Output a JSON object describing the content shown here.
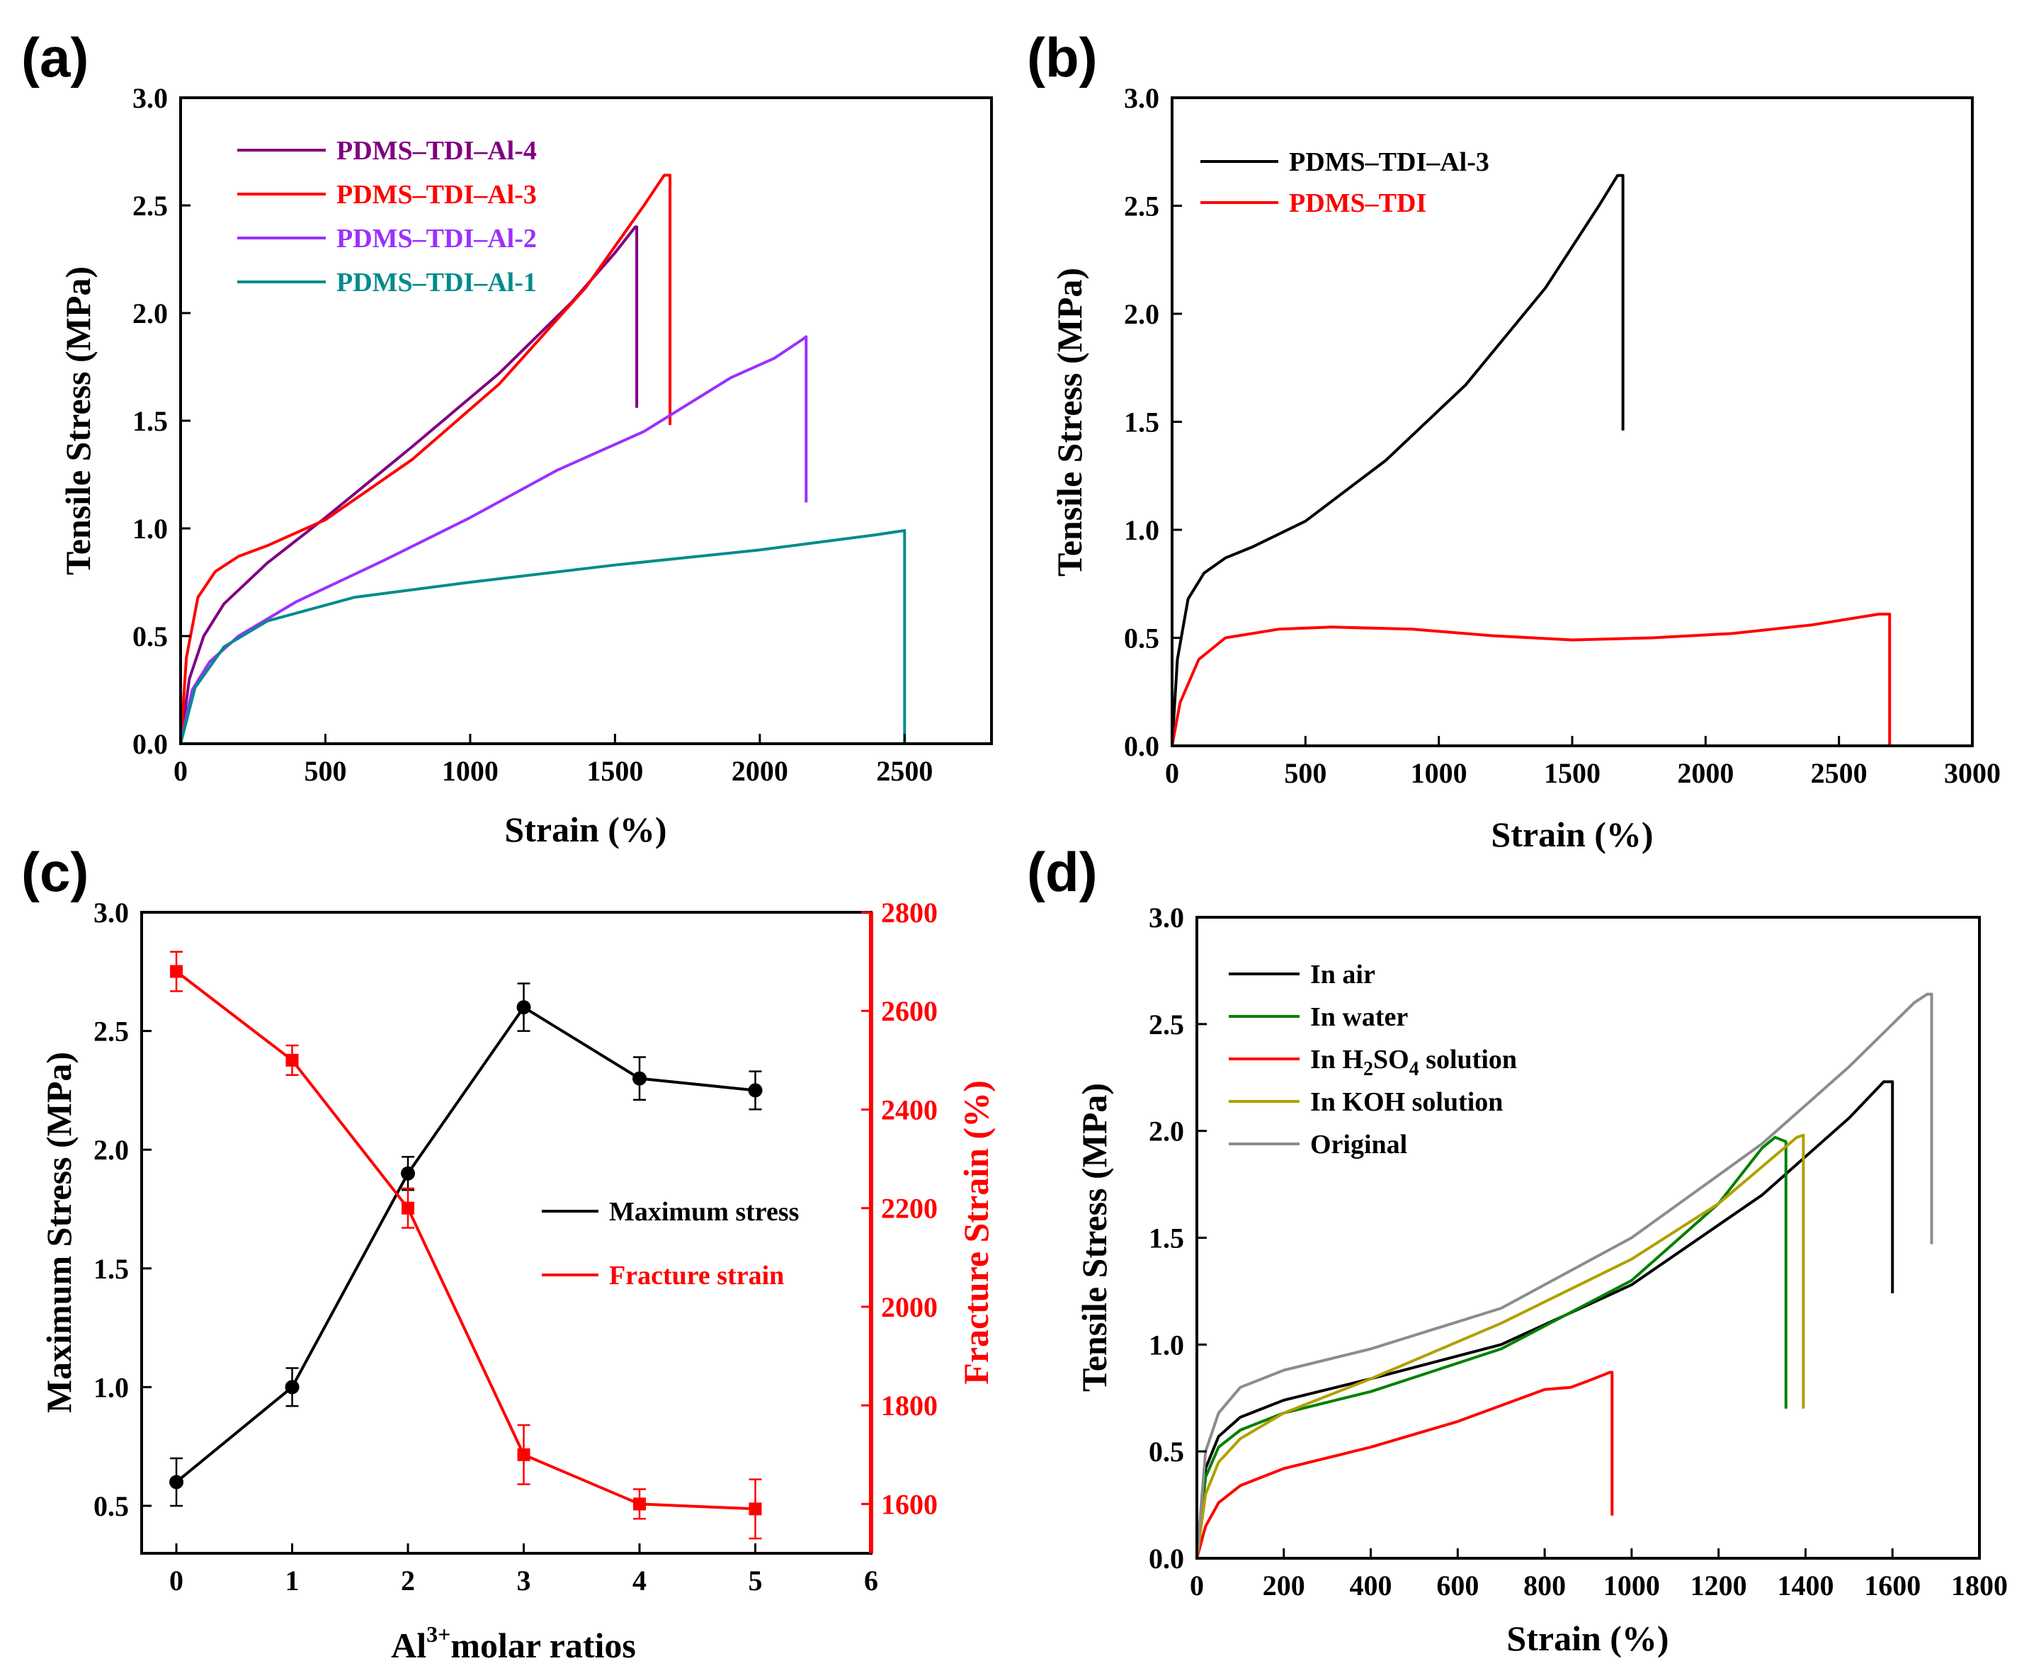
{
  "chart_data": [
    {
      "panel": "(a)",
      "type": "line",
      "xlabel": "Strain (%)",
      "ylabel": "Tensile Stress (MPa)",
      "xlim": [
        0,
        2800
      ],
      "ylim": [
        0,
        3.0
      ],
      "xticks": [
        0,
        500,
        1000,
        1500,
        2000,
        2500
      ],
      "xtick_labels": [
        "0",
        "500",
        "1000",
        "1500",
        "2000",
        "2500"
      ],
      "yticks": [
        0,
        0.5,
        1.0,
        1.5,
        2.0,
        2.5,
        3.0
      ],
      "ytick_labels": [
        "0.0",
        "0.5",
        "1.0",
        "1.5",
        "2.0",
        "2.5",
        "3.0"
      ],
      "legend_position": "top-left",
      "series": [
        {
          "name": "PDMS–TDI–Al-4",
          "color": "#800080",
          "x": [
            0,
            30,
            80,
            150,
            300,
            500,
            800,
            1100,
            1350,
            1500,
            1570,
            1575,
            1575
          ],
          "y": [
            0,
            0.3,
            0.5,
            0.65,
            0.84,
            1.05,
            1.38,
            1.72,
            2.05,
            2.28,
            2.4,
            2.4,
            1.56
          ]
        },
        {
          "name": "PDMS–TDI–Al-3",
          "color": "#ff0000",
          "x": [
            0,
            20,
            60,
            120,
            200,
            300,
            500,
            800,
            1100,
            1400,
            1600,
            1670,
            1690,
            1690
          ],
          "y": [
            0,
            0.4,
            0.68,
            0.8,
            0.87,
            0.92,
            1.04,
            1.32,
            1.67,
            2.12,
            2.5,
            2.64,
            2.64,
            1.48
          ]
        },
        {
          "name": "PDMS–TDI–Al-2",
          "color": "#9b30ff",
          "x": [
            0,
            40,
            100,
            200,
            400,
            700,
            1000,
            1300,
            1600,
            1900,
            2050,
            2150,
            2160,
            2160
          ],
          "y": [
            0,
            0.25,
            0.38,
            0.5,
            0.66,
            0.85,
            1.05,
            1.27,
            1.45,
            1.7,
            1.79,
            1.88,
            1.89,
            1.12
          ]
        },
        {
          "name": "PDMS–TDI–Al-1",
          "color": "#008b8b",
          "x": [
            0,
            50,
            150,
            300,
            600,
            1000,
            1500,
            2000,
            2400,
            2500,
            2500
          ],
          "y": [
            0,
            0.26,
            0.45,
            0.57,
            0.68,
            0.75,
            0.83,
            0.9,
            0.97,
            0.99,
            0
          ]
        }
      ]
    },
    {
      "panel": "(b)",
      "type": "line",
      "xlabel": "Strain (%)",
      "ylabel": "Tensile Stress (MPa)",
      "xlim": [
        0,
        3000
      ],
      "ylim": [
        0,
        3.0
      ],
      "xticks": [
        0,
        500,
        1000,
        1500,
        2000,
        2500,
        3000
      ],
      "xtick_labels": [
        "0",
        "500",
        "1000",
        "1500",
        "2000",
        "2500",
        "3000"
      ],
      "yticks": [
        0,
        0.5,
        1.0,
        1.5,
        2.0,
        2.5,
        3.0
      ],
      "ytick_labels": [
        "0.0",
        "0.5",
        "1.0",
        "1.5",
        "2.0",
        "2.5",
        "3.0"
      ],
      "legend_position": "top-left",
      "series": [
        {
          "name": "PDMS–TDI–Al-3",
          "color": "#000000",
          "x": [
            0,
            20,
            60,
            120,
            200,
            300,
            500,
            800,
            1100,
            1400,
            1600,
            1670,
            1690,
            1690
          ],
          "y": [
            0,
            0.4,
            0.68,
            0.8,
            0.87,
            0.92,
            1.04,
            1.32,
            1.67,
            2.12,
            2.5,
            2.64,
            2.64,
            1.46
          ]
        },
        {
          "name": "PDMS–TDI",
          "color": "#ff0000",
          "x": [
            0,
            30,
            100,
            200,
            400,
            600,
            900,
            1200,
            1500,
            1800,
            2100,
            2400,
            2650,
            2690,
            2690
          ],
          "y": [
            0,
            0.2,
            0.4,
            0.5,
            0.54,
            0.55,
            0.54,
            0.51,
            0.49,
            0.5,
            0.52,
            0.56,
            0.61,
            0.61,
            0
          ]
        }
      ]
    },
    {
      "panel": "(c)",
      "type": "line",
      "xlabel": "Al³⁺molar ratios",
      "xlabel_base": "Al",
      "xlabel_sup": "3+",
      "xlabel_rest": "molar ratios",
      "ylabel": "Maximum Stress (MPa)",
      "y2label": "Fracture Strain (%)",
      "xlim": [
        -0.3,
        6
      ],
      "ylim": [
        0.3,
        3.0
      ],
      "y2lim": [
        1500,
        2800
      ],
      "xticks": [
        0,
        1,
        2,
        3,
        4,
        5,
        6
      ],
      "xtick_labels": [
        "0",
        "1",
        "2",
        "3",
        "4",
        "5",
        "6"
      ],
      "yticks": [
        0.5,
        1.0,
        1.5,
        2.0,
        2.5,
        3.0
      ],
      "ytick_labels": [
        "0.5",
        "1.0",
        "1.5",
        "2.0",
        "2.5",
        "3.0"
      ],
      "y2ticks": [
        1600,
        1800,
        2000,
        2200,
        2400,
        2600,
        2800
      ],
      "y2tick_labels": [
        "1600",
        "1800",
        "2000",
        "2200",
        "2400",
        "2600",
        "2800"
      ],
      "legend_position": "center-right",
      "series": [
        {
          "name": "Maximum stress",
          "color": "#000000",
          "axis": "left",
          "marker": "circle",
          "x": [
            0,
            1,
            2,
            3,
            4,
            5
          ],
          "y": [
            0.6,
            1.0,
            1.9,
            2.6,
            2.3,
            2.25
          ],
          "err": [
            0.1,
            0.08,
            0.07,
            0.1,
            0.09,
            0.08
          ]
        },
        {
          "name": "Fracture strain",
          "color": "#ff0000",
          "axis": "right",
          "marker": "square",
          "x": [
            0,
            1,
            2,
            3,
            4,
            5
          ],
          "y": [
            2680,
            2500,
            2200,
            1700,
            1600,
            1590
          ],
          "err": [
            40,
            30,
            40,
            60,
            30,
            60
          ]
        }
      ]
    },
    {
      "panel": "(d)",
      "type": "line",
      "xlabel": "Strain (%)",
      "ylabel": "Tensile Stress (MPa)",
      "xlim": [
        0,
        1800
      ],
      "ylim": [
        0,
        3.0
      ],
      "xticks": [
        0,
        200,
        400,
        600,
        800,
        1000,
        1200,
        1400,
        1600,
        1800
      ],
      "xtick_labels": [
        "0",
        "200",
        "400",
        "600",
        "800",
        "1000",
        "1200",
        "1400",
        "1600",
        "1800"
      ],
      "yticks": [
        0,
        0.5,
        1.0,
        1.5,
        2.0,
        2.5,
        3.0
      ],
      "ytick_labels": [
        "0.0",
        "0.5",
        "1.0",
        "1.5",
        "2.0",
        "2.5",
        "3.0"
      ],
      "legend_position": "top-left",
      "series": [
        {
          "name": "In air",
          "label_parts": [
            "In air"
          ],
          "color": "#000000",
          "x": [
            0,
            20,
            50,
            100,
            200,
            400,
            700,
            1000,
            1300,
            1500,
            1580,
            1600,
            1600
          ],
          "y": [
            0,
            0.42,
            0.57,
            0.66,
            0.74,
            0.84,
            1.0,
            1.28,
            1.7,
            2.06,
            2.23,
            2.23,
            1.24
          ]
        },
        {
          "name": "In water",
          "label_parts": [
            "In water"
          ],
          "color": "#008000",
          "x": [
            0,
            20,
            50,
            100,
            200,
            400,
            700,
            1000,
            1200,
            1300,
            1330,
            1355,
            1355
          ],
          "y": [
            0,
            0.38,
            0.52,
            0.6,
            0.68,
            0.78,
            0.98,
            1.3,
            1.66,
            1.92,
            1.97,
            1.95,
            0.7
          ]
        },
        {
          "name": "In H₂SO₄ solution",
          "label_parts": [
            "In H",
            "2",
            "SO",
            "4",
            " solution"
          ],
          "color": "#ff0000",
          "x": [
            0,
            20,
            50,
            100,
            200,
            400,
            600,
            800,
            860,
            900,
            950,
            955,
            955
          ],
          "y": [
            0,
            0.15,
            0.26,
            0.34,
            0.42,
            0.52,
            0.64,
            0.79,
            0.8,
            0.83,
            0.87,
            0.87,
            0.2
          ]
        },
        {
          "name": "In KOH solution",
          "label_parts": [
            "In KOH solution"
          ],
          "color": "#b0a000",
          "x": [
            0,
            20,
            50,
            100,
            200,
            400,
            700,
            1000,
            1200,
            1380,
            1395,
            1395
          ],
          "y": [
            0,
            0.3,
            0.45,
            0.56,
            0.68,
            0.84,
            1.1,
            1.4,
            1.66,
            1.97,
            1.98,
            0.7
          ]
        },
        {
          "name": "Original",
          "label_parts": [
            "Original"
          ],
          "color": "#8c8c8c",
          "x": [
            0,
            20,
            50,
            100,
            200,
            400,
            700,
            1000,
            1300,
            1500,
            1650,
            1680,
            1690,
            1690
          ],
          "y": [
            0,
            0.5,
            0.68,
            0.8,
            0.88,
            0.98,
            1.17,
            1.5,
            1.94,
            2.3,
            2.6,
            2.64,
            2.64,
            1.47
          ]
        }
      ]
    }
  ]
}
